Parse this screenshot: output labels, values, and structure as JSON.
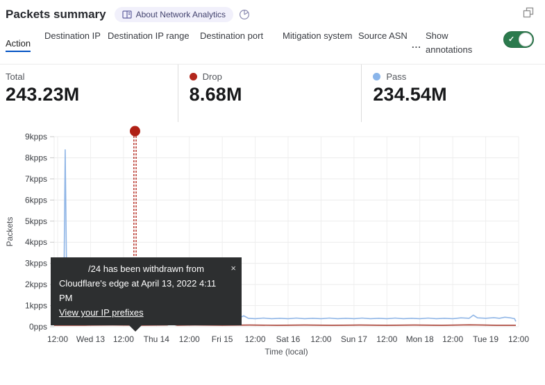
{
  "header": {
    "title": "Packets summary",
    "about_badge_label": "About Network Analytics"
  },
  "tabs": {
    "items": [
      {
        "label": "Action",
        "selected": true
      },
      {
        "label": "Destination IP",
        "selected": false
      },
      {
        "label": "Destination IP range",
        "selected": false
      },
      {
        "label": "Destination port",
        "selected": false
      },
      {
        "label": "Mitigation system",
        "selected": false
      },
      {
        "label": "Source ASN",
        "selected": false
      }
    ],
    "more_label": "...",
    "annotations_label": "Show annotations",
    "annotations_toggle_on": true,
    "selected_underline_color": "#0051c3",
    "toggle_on_color": "#2b7a4d"
  },
  "stats": {
    "items": [
      {
        "label": "Total",
        "value": "243.23M",
        "dot_color": null
      },
      {
        "label": "Drop",
        "value": "8.68M",
        "dot_color": "#b3271c"
      },
      {
        "label": "Pass",
        "value": "234.54M",
        "dot_color": "#8ab5ea"
      }
    ]
  },
  "annotation_tooltip": {
    "line1": "/24 has been withdrawn from",
    "line2": "Cloudflare's edge at April 13, 2022 4:11 PM",
    "link_label": "View your IP prefixes",
    "close_glyph": "×"
  },
  "chart_data": {
    "type": "line",
    "title": "",
    "xlabel": "Time (local)",
    "ylabel": "Packets",
    "x_unit": "hours since 2022-04-12 12:00 (local)",
    "xlim": [
      -1.27,
      168
    ],
    "ylim": [
      0,
      9
    ],
    "grid": true,
    "y_ticks": {
      "values": [
        9,
        8,
        7,
        6,
        5,
        4,
        3,
        2,
        1,
        0
      ],
      "labels": [
        "9kpps",
        "8kpps",
        "7kpps",
        "6kpps",
        "5kpps",
        "4kpps",
        "3kpps",
        "2kpps",
        "1kpps",
        "0pps"
      ]
    },
    "x_ticks": {
      "positions": [
        0,
        12,
        24,
        36,
        48,
        60,
        72,
        84,
        96,
        108,
        120,
        132,
        144,
        156,
        168
      ],
      "labels": [
        "12:00",
        "Wed 13",
        "12:00",
        "Thu 14",
        "12:00",
        "Fri 15",
        "12:00",
        "Sat 16",
        "12:00",
        "Sun 17",
        "12:00",
        "Mon 18",
        "12:00",
        "Tue 19",
        "12:00"
      ]
    },
    "series": [
      {
        "name": "Pass",
        "color": "#8fb5e6",
        "unit": "kpps",
        "points": [
          [
            -1.27,
            0.78
          ],
          [
            0,
            0.62
          ],
          [
            1.2,
            0.52
          ],
          [
            2.2,
            0.55
          ],
          [
            2.75,
            8.38
          ],
          [
            3.3,
            2.0
          ],
          [
            4.2,
            1.7
          ],
          [
            5.6,
            1.05
          ],
          [
            6.8,
            0.6
          ],
          [
            8,
            0.45
          ],
          [
            9.5,
            0.4
          ],
          [
            11,
            0.38
          ],
          [
            13,
            0.4
          ],
          [
            15,
            0.37
          ],
          [
            16.5,
            0.4
          ],
          [
            17.5,
            0.56
          ],
          [
            18.5,
            0.4
          ],
          [
            20,
            0.37
          ],
          [
            22,
            0.4
          ],
          [
            23.3,
            0.52
          ],
          [
            24.5,
            0.38
          ],
          [
            26,
            0.36
          ],
          [
            28,
            0.4
          ],
          [
            30,
            0.37
          ],
          [
            32,
            0.42
          ],
          [
            34,
            0.38
          ],
          [
            36,
            0.4
          ],
          [
            38,
            0.37
          ],
          [
            40,
            0.42
          ],
          [
            42,
            0.45
          ],
          [
            44,
            0.38
          ],
          [
            46,
            0.4
          ],
          [
            48,
            0.37
          ],
          [
            50,
            0.42
          ],
          [
            52,
            0.38
          ],
          [
            54,
            0.4
          ],
          [
            56,
            0.37
          ],
          [
            58,
            0.42
          ],
          [
            60,
            0.38
          ],
          [
            62,
            0.4
          ],
          [
            64,
            0.37
          ],
          [
            66,
            0.4
          ],
          [
            67.8,
            0.52
          ],
          [
            69.5,
            0.4
          ],
          [
            72,
            0.38
          ],
          [
            75,
            0.41
          ],
          [
            78,
            0.38
          ],
          [
            81,
            0.4
          ],
          [
            84,
            0.38
          ],
          [
            87,
            0.41
          ],
          [
            90,
            0.38
          ],
          [
            93,
            0.4
          ],
          [
            96,
            0.38
          ],
          [
            99,
            0.41
          ],
          [
            102,
            0.38
          ],
          [
            105,
            0.4
          ],
          [
            108,
            0.38
          ],
          [
            111,
            0.41
          ],
          [
            114,
            0.38
          ],
          [
            117,
            0.4
          ],
          [
            120,
            0.38
          ],
          [
            123,
            0.41
          ],
          [
            126,
            0.38
          ],
          [
            129,
            0.4
          ],
          [
            132,
            0.38
          ],
          [
            135,
            0.41
          ],
          [
            138,
            0.38
          ],
          [
            141,
            0.4
          ],
          [
            144,
            0.38
          ],
          [
            147,
            0.42
          ],
          [
            150,
            0.4
          ],
          [
            151.5,
            0.55
          ],
          [
            153,
            0.42
          ],
          [
            156,
            0.4
          ],
          [
            159,
            0.43
          ],
          [
            161,
            0.4
          ],
          [
            163,
            0.45
          ],
          [
            165,
            0.42
          ],
          [
            166.5,
            0.38
          ],
          [
            167,
            0.25
          ]
        ]
      },
      {
        "name": "Drop",
        "color": "#a63a2e",
        "unit": "kpps",
        "points": [
          [
            -1.27,
            0.07
          ],
          [
            10,
            0.07
          ],
          [
            20,
            0.08
          ],
          [
            30,
            0.07
          ],
          [
            40,
            0.08
          ],
          [
            41,
            0.12
          ],
          [
            41.6,
            0.34
          ],
          [
            42.3,
            0.1
          ],
          [
            43.5,
            0.07
          ],
          [
            50,
            0.08
          ],
          [
            60,
            0.07
          ],
          [
            70,
            0.08
          ],
          [
            80,
            0.07
          ],
          [
            90,
            0.08
          ],
          [
            100,
            0.07
          ],
          [
            110,
            0.08
          ],
          [
            120,
            0.07
          ],
          [
            130,
            0.08
          ],
          [
            140,
            0.07
          ],
          [
            150,
            0.09
          ],
          [
            155,
            0.08
          ],
          [
            160,
            0.07
          ],
          [
            167,
            0.07
          ]
        ]
      }
    ],
    "annotation": {
      "x_hours": 28.2,
      "label_datetime": "April 13, 2022 4:11 PM",
      "color": "#b02015",
      "style": "double-dashed-vertical-line-with-top-dot"
    },
    "legend_position": "none (legend shown in stats row above)"
  }
}
